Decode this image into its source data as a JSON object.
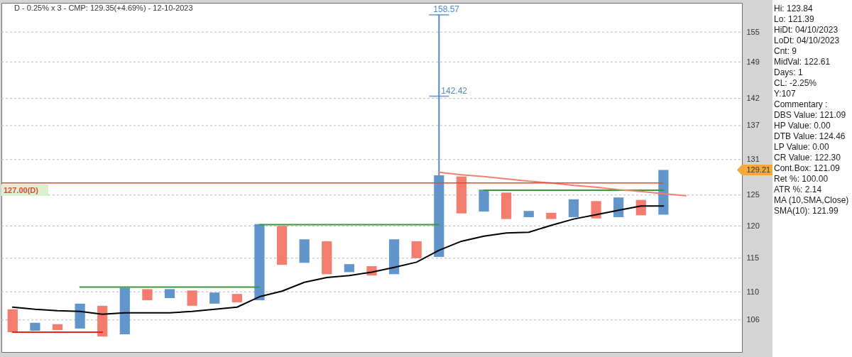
{
  "chart_data": {
    "type": "bar",
    "title": "D - 0.25% x 3 - CMP: 129.35(+4.69%) - 12-10-2023",
    "categories": [
      null,
      null,
      null,
      null,
      null,
      null,
      null,
      null,
      null,
      null,
      null,
      null,
      null,
      null,
      null,
      null,
      null,
      null,
      null,
      null,
      null,
      null,
      null,
      null,
      null,
      null,
      null,
      null,
      null,
      null,
      null,
      null,
      null
    ],
    "series": [
      {
        "base": [
          104.3,
          104.5,
          104.6,
          104.8,
          103.7,
          104.0,
          108.8,
          109.1,
          108.0,
          108.3,
          108.5,
          108.8,
          114.0,
          114.3,
          112.6,
          112.9,
          112.4,
          112.6,
          115.0,
          115.2,
          122.0,
          122.3,
          121.1,
          121.4,
          121.1,
          121.4,
          121.2,
          121.4,
          121.7,
          121.8,
          null,
          null,
          null
        ],
        "values": [
          3.2,
          1.1,
          0.8,
          3.5,
          4.3,
          6.6,
          1.6,
          1.3,
          2.2,
          1.6,
          1.2,
          11.5,
          6.0,
          3.6,
          5.0,
          1.2,
          1.4,
          5.3,
          2.6,
          13.1,
          6.1,
          3.6,
          4.3,
          1.0,
          1.0,
          2.9,
          2.8,
          3.2,
          2.5,
          7.41,
          null,
          null,
          null
        ],
        "colors": [
          "#f26f5e",
          "#5089c6",
          "#f26f5e",
          "#5089c6",
          "#f26f5e",
          "#5089c6",
          "#f26f5e",
          "#5089c6",
          "#f26f5e",
          "#5089c6",
          "#f26f5e",
          "#5089c6",
          "#f26f5e",
          "#5089c6",
          "#f26f5e",
          "#5089c6",
          "#f26f5e",
          "#5089c6",
          "#f26f5e",
          "#5089c6",
          "#f26f5e",
          "#5089c6",
          "#f26f5e",
          "#5089c6",
          "#f26f5e",
          "#5089c6",
          "#f26f5e",
          "#5089c6",
          "#f26f5e",
          "#5089c6",
          null,
          null,
          null
        ],
        "errors": [
          null,
          null,
          null,
          null,
          null,
          null,
          null,
          null,
          null,
          null,
          null,
          null,
          null,
          null,
          null,
          null,
          null,
          null,
          null,
          [
            128.3,
            158.57
          ],
          null,
          null,
          null,
          null,
          null,
          null,
          null,
          null,
          null,
          null,
          null,
          null,
          null
        ]
      },
      {
        "type": "line",
        "color": "#000000",
        "values": [
          107.8,
          107.5,
          107.3,
          107.2,
          106.8,
          107.0,
          107.0,
          107.0,
          107.2,
          107.5,
          107.8,
          109.3,
          110.1,
          111.4,
          112.1,
          112.4,
          112.9,
          113.6,
          114.4,
          116.2,
          117.6,
          118.4,
          118.9,
          119.0,
          120.1,
          121.1,
          121.8,
          122.5,
          123.2,
          123.2,
          null,
          null,
          null
        ]
      },
      {
        "type": "line",
        "color": "#3a983a",
        "values": [
          null,
          null,
          null,
          110.7,
          110.7,
          110.7,
          110.7,
          110.7,
          110.7,
          110.7,
          110.7,
          110.7,
          null,
          null,
          null,
          null,
          null,
          null,
          null,
          null,
          null,
          null,
          null,
          null,
          null,
          null,
          null,
          null,
          null,
          null,
          null,
          null,
          null
        ]
      },
      {
        "type": "line",
        "color": "#3a983a",
        "values": [
          null,
          null,
          null,
          null,
          null,
          null,
          null,
          null,
          null,
          null,
          null,
          120.2,
          120.2,
          120.2,
          120.2,
          120.2,
          120.2,
          120.2,
          120.2,
          120.2,
          null,
          null,
          null,
          null,
          null,
          null,
          null,
          null,
          null,
          null,
          null,
          null,
          null
        ]
      },
      {
        "type": "line",
        "color": "#3a983a",
        "values": [
          null,
          null,
          null,
          null,
          null,
          null,
          null,
          null,
          null,
          null,
          null,
          null,
          null,
          null,
          null,
          null,
          null,
          null,
          null,
          null,
          null,
          125.8,
          125.8,
          125.8,
          125.8,
          125.8,
          125.8,
          125.8,
          125.8,
          125.8,
          null,
          null,
          null
        ]
      },
      {
        "type": "line",
        "color": "#e8221d",
        "values": [
          104.3,
          104.3,
          104.3,
          104.3,
          104.3,
          null,
          null,
          null,
          null,
          null,
          null,
          null,
          null,
          null,
          null,
          null,
          null,
          null,
          null,
          null,
          null,
          null,
          null,
          null,
          null,
          null,
          null,
          null,
          null,
          null,
          null,
          null,
          null
        ]
      },
      {
        "type": "line",
        "color": "#f2806e",
        "values": [
          null,
          null,
          null,
          null,
          null,
          null,
          null,
          null,
          null,
          null,
          null,
          null,
          null,
          null,
          null,
          null,
          null,
          null,
          null,
          128.8,
          128.4,
          128.1,
          127.7,
          127.3,
          127.0,
          126.6,
          126.3,
          125.9,
          125.6,
          125.2,
          124.9,
          null,
          null
        ]
      }
    ],
    "ref_lines": [
      {
        "axis": "y",
        "value": 127,
        "label": "127.00(D)",
        "color": "#e5453b"
      },
      {
        "axis": "y",
        "value": 142.42,
        "label": "142.42",
        "color": "#5089c6"
      }
    ],
    "ylim": [
      101.6,
      161.1
    ],
    "yticks": [
      106,
      110,
      115,
      120,
      125,
      129.21,
      131,
      137,
      142,
      149,
      155
    ],
    "log": true,
    "grid": "y",
    "tick_labels": "y",
    "annotations": [
      "Hi: 123.84",
      "Lo: 121.39",
      "HiDt: 04/10/2023",
      "LoDt: 04/10/2023",
      "Cnt: 9",
      "MidVal: 122.61",
      "Days: 1",
      "CL: -2.25%",
      "Y:107",
      "Commentary :",
      "DBS Value: 121.09",
      "HP Value: 0.00",
      "DTB Value: 124.46",
      "LP Value: 0.00",
      "CR Value: 122.30",
      "Cont.Box: 121.09",
      "Ret %: 100.00",
      "ATR %: 2.14",
      "MA (10,SMA,Close)",
      "SMA(10): 121.99",
      {
        "text": "158.57",
        "y": 158.57
      }
    ]
  }
}
